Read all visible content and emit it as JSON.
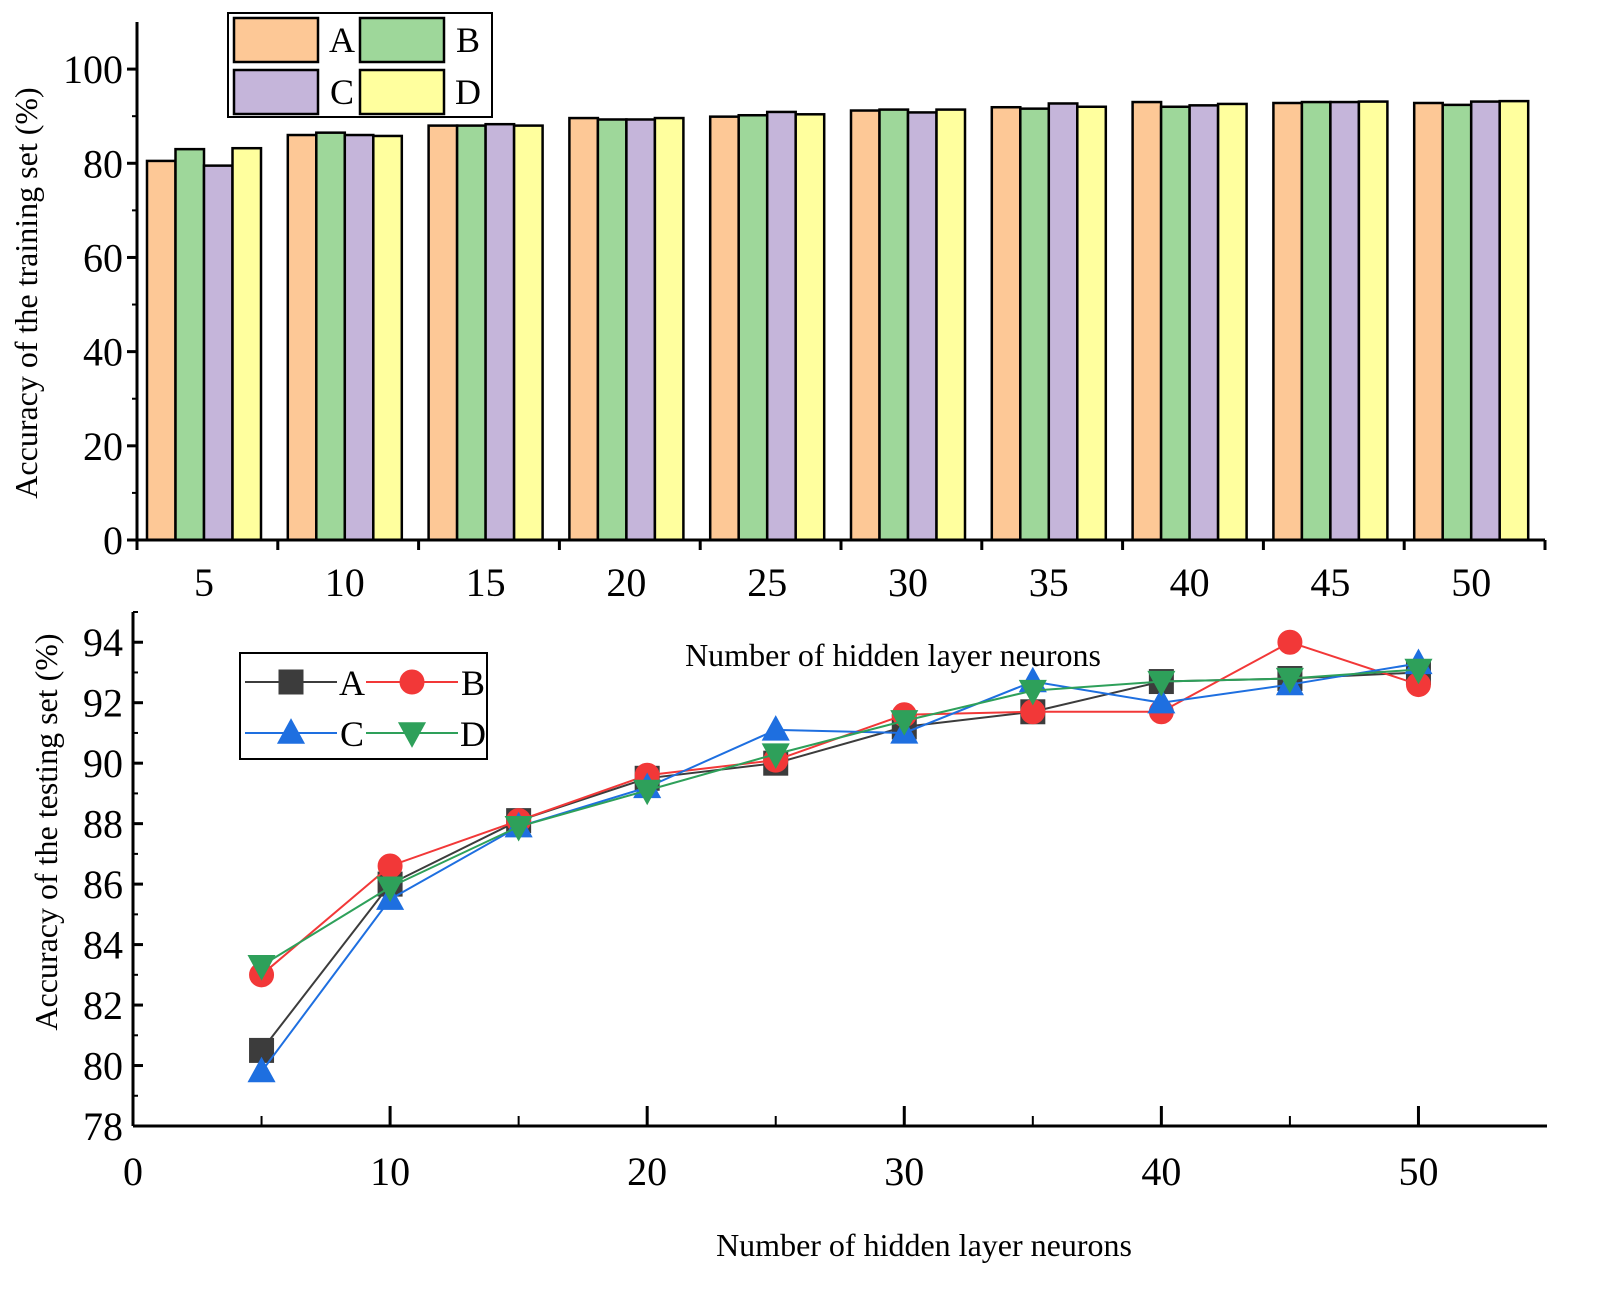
{
  "chart_data": [
    {
      "type": "bar",
      "title": "",
      "xlabel": "Number of hidden layer neurons",
      "ylabel": "Accuracy of the training set (%)",
      "categories": [
        "5",
        "10",
        "15",
        "20",
        "25",
        "30",
        "35",
        "40",
        "45",
        "50"
      ],
      "ylim": [
        0,
        110
      ],
      "yticks": [
        0,
        20,
        40,
        60,
        80,
        100
      ],
      "legend_position": "top-left",
      "series": [
        {
          "name": "A",
          "color": "#FDC896",
          "values": [
            80.5,
            86.0,
            88.0,
            89.6,
            89.9,
            91.2,
            91.9,
            93.0,
            92.8,
            92.8
          ]
        },
        {
          "name": "B",
          "color": "#9ED79A",
          "values": [
            83.0,
            86.5,
            88.0,
            89.3,
            90.2,
            91.4,
            91.6,
            92.0,
            93.0,
            92.4
          ]
        },
        {
          "name": "C",
          "color": "#C5B5DA",
          "values": [
            79.5,
            86.0,
            88.3,
            89.3,
            90.9,
            90.8,
            92.7,
            92.3,
            93.0,
            93.1
          ]
        },
        {
          "name": "D",
          "color": "#FFFF9E",
          "values": [
            83.2,
            85.8,
            88.0,
            89.6,
            90.4,
            91.4,
            92.0,
            92.6,
            93.1,
            93.2
          ]
        }
      ]
    },
    {
      "type": "line",
      "title": "",
      "xlabel": "Number of hidden layer neurons",
      "ylabel": "Accuracy of the testing set (%)",
      "x": [
        5,
        10,
        15,
        20,
        25,
        30,
        35,
        40,
        45,
        50
      ],
      "xlim": [
        0,
        55
      ],
      "ylim": [
        78,
        95
      ],
      "xticks": [
        0,
        10,
        20,
        30,
        40,
        50
      ],
      "yticks": [
        78,
        80,
        82,
        84,
        86,
        88,
        90,
        92,
        94
      ],
      "legend_position": "top-left",
      "series": [
        {
          "name": "A",
          "color": "#3C3C3C",
          "marker": "square",
          "values": [
            80.5,
            86.0,
            88.1,
            89.5,
            90.0,
            91.2,
            91.7,
            92.7,
            92.8,
            93.0
          ]
        },
        {
          "name": "B",
          "color": "#F23838",
          "marker": "circle",
          "values": [
            83.0,
            86.6,
            88.1,
            89.6,
            90.1,
            91.6,
            91.7,
            91.7,
            94.0,
            92.6
          ]
        },
        {
          "name": "C",
          "color": "#1E6FE0",
          "marker": "triangle-up",
          "values": [
            79.8,
            85.5,
            87.9,
            89.2,
            91.1,
            91.0,
            92.7,
            92.0,
            92.6,
            93.3
          ]
        },
        {
          "name": "D",
          "color": "#2EA05A",
          "marker": "triangle-down",
          "values": [
            83.3,
            85.9,
            87.9,
            89.1,
            90.3,
            91.4,
            92.4,
            92.7,
            92.8,
            93.1
          ]
        }
      ]
    }
  ]
}
